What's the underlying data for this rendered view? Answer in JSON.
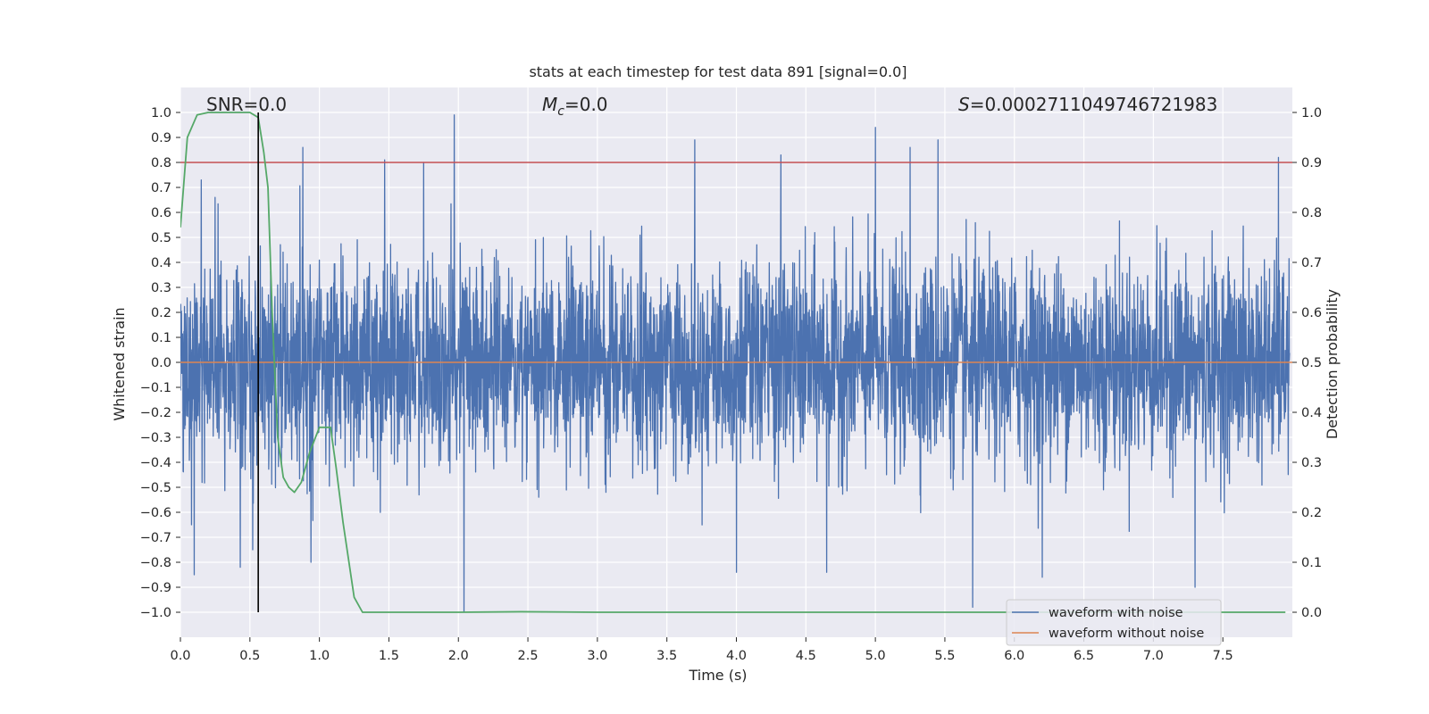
{
  "chart_data": {
    "type": "line",
    "title": "stats at each timestep for test data 891 [signal=0.0]",
    "xlabel": "Time (s)",
    "ylabel_left": "Whitened strain",
    "ylabel_right": "Detection probability",
    "xlim": [
      0.0,
      8.0
    ],
    "ylim_left": [
      -1.1,
      1.1
    ],
    "ylim_right": [
      -0.05,
      1.05
    ],
    "xticks": [
      "0.0",
      "0.5",
      "1.0",
      "1.5",
      "2.0",
      "2.5",
      "3.0",
      "3.5",
      "4.0",
      "4.5",
      "5.0",
      "5.5",
      "6.0",
      "6.5",
      "7.0",
      "7.5"
    ],
    "yticks_left": [
      "1.0",
      "0.9",
      "0.8",
      "0.7",
      "0.6",
      "0.5",
      "0.4",
      "0.3",
      "0.2",
      "0.1",
      "0.0",
      "−0.1",
      "−0.2",
      "−0.3",
      "−0.4",
      "−0.5",
      "−0.6",
      "−0.7",
      "−0.8",
      "−0.9",
      "−1.0"
    ],
    "yticks_right": [
      "1.0",
      "0.9",
      "0.8",
      "0.7",
      "0.6",
      "0.5",
      "0.4",
      "0.3",
      "0.2",
      "0.1",
      "0.0"
    ],
    "grid": true,
    "legend_position": "bottom-right",
    "annotations": {
      "snr": "SNR=0.0",
      "mc_symbol": "M",
      "mc_sub": "c",
      "mc_value": "=0.0",
      "s_symbol": "S",
      "s_value": "=0.0002711049746721983"
    },
    "series": [
      {
        "name": "waveform with noise",
        "axis": "left",
        "color": "#4c72b0",
        "style": "dense noise, amplitude mostly within ±0.4 with spikes up to about ±1.0",
        "peaks": [
          {
            "x": 0.08,
            "y": -0.65
          },
          {
            "x": 0.1,
            "y": -0.85
          },
          {
            "x": 0.15,
            "y": 0.73
          },
          {
            "x": 0.25,
            "y": 0.66
          },
          {
            "x": 0.43,
            "y": -0.82
          },
          {
            "x": 0.52,
            "y": -0.75
          },
          {
            "x": 0.56,
            "y": 0.65
          },
          {
            "x": 0.88,
            "y": 0.86
          },
          {
            "x": 0.94,
            "y": -0.8
          },
          {
            "x": 1.47,
            "y": 0.81
          },
          {
            "x": 1.75,
            "y": 0.8
          },
          {
            "x": 1.97,
            "y": 0.99
          },
          {
            "x": 2.04,
            "y": -1.0
          },
          {
            "x": 3.7,
            "y": 0.89
          },
          {
            "x": 4.0,
            "y": -0.84
          },
          {
            "x": 4.32,
            "y": 0.83
          },
          {
            "x": 4.65,
            "y": -0.84
          },
          {
            "x": 5.0,
            "y": 0.94
          },
          {
            "x": 5.25,
            "y": 0.86
          },
          {
            "x": 5.45,
            "y": 0.89
          },
          {
            "x": 5.7,
            "y": -0.98
          },
          {
            "x": 6.2,
            "y": -0.86
          },
          {
            "x": 7.3,
            "y": -0.9
          },
          {
            "x": 7.9,
            "y": 0.82
          }
        ]
      },
      {
        "name": "waveform without noise",
        "axis": "left",
        "color": "#dd8452",
        "x": [
          0.0,
          8.0
        ],
        "y": [
          0.0,
          0.0
        ]
      },
      {
        "axis": "right",
        "color": "#55a868",
        "x": [
          0.0,
          0.05,
          0.12,
          0.2,
          0.3,
          0.4,
          0.5,
          0.56,
          0.6,
          0.63,
          0.66,
          0.7,
          0.74,
          0.78,
          0.82,
          0.87,
          0.93,
          1.0,
          1.08,
          1.12,
          1.17,
          1.25,
          1.31,
          1.4,
          2.0,
          2.45,
          3.0,
          4.0,
          5.0,
          6.0,
          7.0,
          7.95
        ],
        "y": [
          0.77,
          0.95,
          0.995,
          1.0,
          1.0,
          1.0,
          1.0,
          0.99,
          0.92,
          0.85,
          0.6,
          0.35,
          0.27,
          0.25,
          0.24,
          0.26,
          0.32,
          0.37,
          0.37,
          0.29,
          0.18,
          0.03,
          0.0,
          0.0,
          0.0,
          0.001,
          0.0,
          0.0,
          0.0,
          0.0,
          0.0,
          0.0
        ]
      },
      {
        "axis": "left",
        "color": "#c44e52",
        "type": "hline",
        "y": 0.8
      },
      {
        "axis": "left",
        "color": "#000000",
        "type": "vline",
        "x": 0.56,
        "y_range": [
          -1.0,
          1.0
        ]
      }
    ]
  }
}
